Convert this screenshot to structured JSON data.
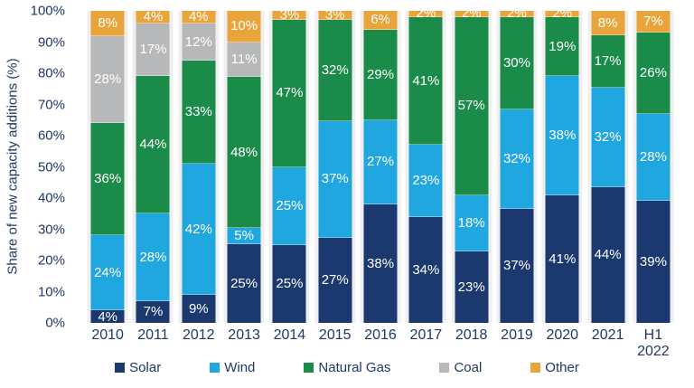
{
  "chart_data": {
    "type": "bar",
    "stacked": true,
    "title": "",
    "ylabel": "Share of new capacity additions (%)",
    "xlabel": "",
    "ylim": [
      0,
      100
    ],
    "y_tick_step": 10,
    "y_ticks": [
      "0%",
      "10%",
      "20%",
      "30%",
      "40%",
      "50%",
      "60%",
      "70%",
      "80%",
      "90%",
      "100%"
    ],
    "grid": false,
    "legend_position": "bottom",
    "label_format": "{value}%",
    "min_label_value": 2,
    "categories": [
      "2010",
      "2011",
      "2012",
      "2013",
      "2014",
      "2015",
      "2016",
      "2017",
      "2018",
      "2019",
      "2020",
      "2021",
      "H1\n2022"
    ],
    "series": [
      {
        "name": "Solar",
        "color": "#1B396E",
        "values": [
          4,
          7,
          9,
          25,
          25,
          27,
          38,
          34,
          23,
          37,
          41,
          44,
          39
        ]
      },
      {
        "name": "Wind",
        "color": "#21A7E0",
        "values": [
          24,
          28,
          42,
          5,
          25,
          37,
          27,
          23,
          18,
          32,
          38,
          32,
          28
        ]
      },
      {
        "name": "Natural Gas",
        "color": "#1A8B49",
        "values": [
          36,
          44,
          33,
          48,
          47,
          32,
          29,
          41,
          57,
          30,
          19,
          17,
          26
        ]
      },
      {
        "name": "Coal",
        "color": "#B6B8BA",
        "values": [
          28,
          17,
          12,
          11,
          0,
          0,
          0,
          0,
          0,
          0,
          0,
          0,
          0
        ]
      },
      {
        "name": "Other",
        "color": "#E9A53C",
        "values": [
          8,
          4,
          4,
          10,
          3,
          3,
          6,
          2,
          2,
          2,
          2,
          8,
          7
        ]
      }
    ]
  },
  "colors": {
    "axis_text": "#1F3864",
    "column_band": "#EFEFEF",
    "background": "#FFFFFF",
    "data_label": "#FFFFFF"
  }
}
